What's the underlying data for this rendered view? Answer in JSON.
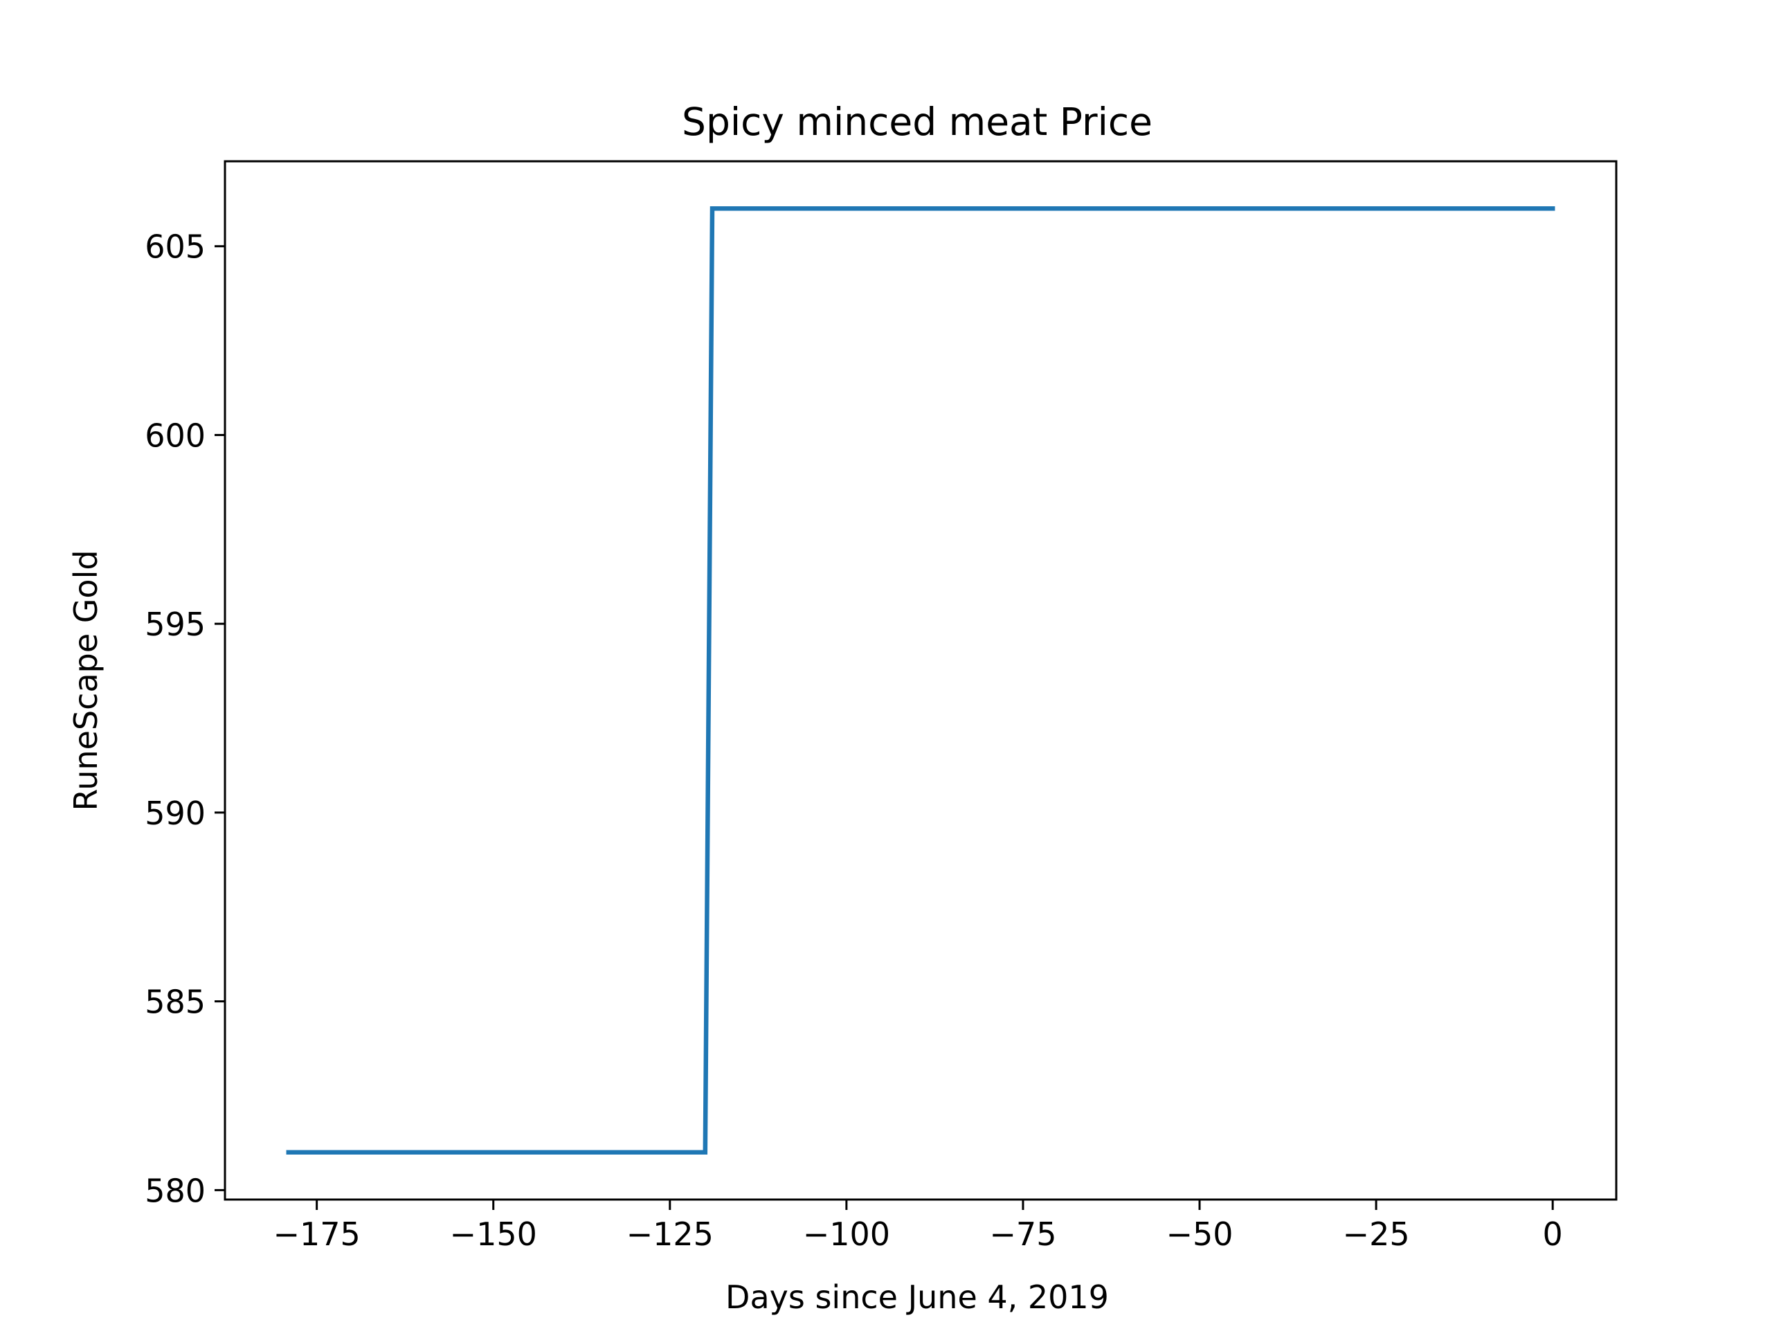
{
  "chart_data": {
    "type": "line",
    "title": "Spicy minced meat Price",
    "xlabel": "Days since June 4, 2019",
    "ylabel": "RuneScape Gold",
    "xlim": [
      -188,
      9
    ],
    "ylim": [
      579.75,
      607.25
    ],
    "xticks": [
      -175,
      -150,
      -125,
      -100,
      -75,
      -50,
      -25,
      0
    ],
    "xtick_labels": [
      "−175",
      "−150",
      "−125",
      "−100",
      "−75",
      "−50",
      "−25",
      "0"
    ],
    "yticks": [
      580,
      585,
      590,
      595,
      600,
      605
    ],
    "ytick_labels": [
      "580",
      "585",
      "590",
      "595",
      "600",
      "605"
    ],
    "grid": false,
    "legend": "none",
    "series": [
      {
        "color": "#1f77b4",
        "x": [
          -179,
          -120,
          -119,
          0
        ],
        "y": [
          581,
          581,
          606,
          606
        ]
      }
    ]
  }
}
